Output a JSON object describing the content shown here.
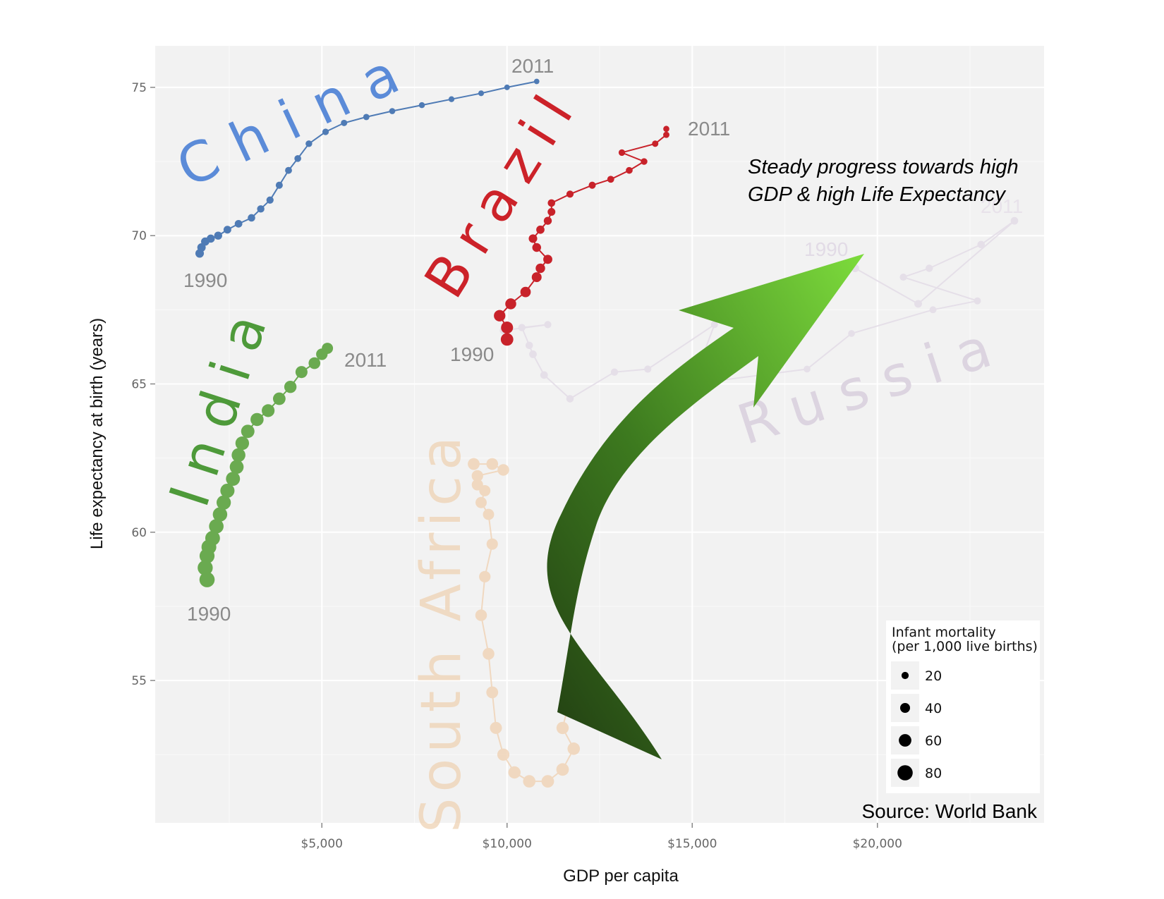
{
  "chart_data": {
    "type": "scatter",
    "xlabel": "GDP per capita",
    "ylabel": "Life expectancy at birth (years)",
    "xlim": [
      500,
      24500
    ],
    "ylim": [
      50.2,
      76.4
    ],
    "x_ticks": [
      5000,
      10000,
      15000,
      20000
    ],
    "x_tick_labels": [
      "$5,000",
      "$10,000",
      "$15,000",
      "$20,000"
    ],
    "y_ticks": [
      55,
      60,
      65,
      70,
      75
    ],
    "y_tick_labels": [
      "55",
      "60",
      "65",
      "70",
      "75"
    ],
    "grid": true,
    "size_legend": {
      "title_line1": "Infant mortality",
      "title_line2": "(per 1,000 live births)",
      "values": [
        20,
        40,
        60,
        80
      ],
      "labels": [
        "20",
        "40",
        "60",
        "80"
      ]
    },
    "annotation_line1": "Steady progress towards high",
    "annotation_line2": "GDP & high Life Expectancy",
    "source": "Source: World Bank",
    "series": [
      {
        "name": "China",
        "color": "#4f7bb5",
        "label_color": "#5b8bd8",
        "opacity": 1,
        "start_label": "1990",
        "end_label": "2011",
        "points": [
          [
            1700,
            69.4,
            30
          ],
          [
            1750,
            69.6,
            29
          ],
          [
            1850,
            69.8,
            28
          ],
          [
            2000,
            69.9,
            27
          ],
          [
            2200,
            70.0,
            26
          ],
          [
            2450,
            70.2,
            24
          ],
          [
            2750,
            70.4,
            23
          ],
          [
            3100,
            70.6,
            22
          ],
          [
            3350,
            70.9,
            21
          ],
          [
            3600,
            71.2,
            20
          ],
          [
            3850,
            71.7,
            19
          ],
          [
            4100,
            72.2,
            18
          ],
          [
            4350,
            72.6,
            17
          ],
          [
            4650,
            73.1,
            16
          ],
          [
            5100,
            73.5,
            15
          ],
          [
            5600,
            73.8,
            14
          ],
          [
            6200,
            74.0,
            13
          ],
          [
            6900,
            74.2,
            12
          ],
          [
            7700,
            74.4,
            11
          ],
          [
            8500,
            74.6,
            10
          ],
          [
            9300,
            74.8,
            9
          ],
          [
            10000,
            75.0,
            8
          ],
          [
            10800,
            75.2,
            7
          ]
        ]
      },
      {
        "name": "Brazil",
        "color": "#c8222a",
        "label_color": "#cc2229",
        "opacity": 1,
        "start_label": "1990",
        "end_label": "2011",
        "points": [
          [
            10000,
            66.5,
            60
          ],
          [
            10000,
            66.9,
            56
          ],
          [
            9800,
            67.3,
            52
          ],
          [
            10100,
            67.7,
            48
          ],
          [
            10500,
            68.1,
            44
          ],
          [
            10800,
            68.6,
            40
          ],
          [
            10900,
            68.9,
            37
          ],
          [
            11100,
            69.2,
            34
          ],
          [
            10800,
            69.6,
            32
          ],
          [
            10700,
            69.9,
            30
          ],
          [
            10900,
            70.2,
            28
          ],
          [
            11100,
            70.5,
            26
          ],
          [
            11200,
            70.8,
            24
          ],
          [
            11200,
            71.1,
            22
          ],
          [
            11700,
            71.4,
            20
          ],
          [
            12300,
            71.7,
            19
          ],
          [
            12800,
            71.9,
            18
          ],
          [
            13300,
            72.2,
            17
          ],
          [
            13700,
            72.5,
            16
          ],
          [
            13100,
            72.8,
            15
          ],
          [
            14000,
            73.1,
            14
          ],
          [
            14300,
            73.4,
            13
          ],
          [
            14300,
            73.6,
            12
          ]
        ]
      },
      {
        "name": "India",
        "color": "#6aaa50",
        "label_color": "#4e9a3a",
        "opacity": 1,
        "start_label": "1990",
        "end_label": "2011",
        "points": [
          [
            1900,
            58.4,
            80
          ],
          [
            1850,
            58.8,
            79
          ],
          [
            1900,
            59.2,
            78
          ],
          [
            1950,
            59.5,
            77
          ],
          [
            2050,
            59.8,
            76
          ],
          [
            2150,
            60.2,
            75
          ],
          [
            2250,
            60.6,
            74
          ],
          [
            2350,
            61.0,
            73
          ],
          [
            2450,
            61.4,
            72
          ],
          [
            2600,
            61.8,
            71
          ],
          [
            2700,
            62.2,
            70
          ],
          [
            2750,
            62.6,
            69
          ],
          [
            2850,
            63.0,
            68
          ],
          [
            3000,
            63.4,
            66
          ],
          [
            3250,
            63.8,
            64
          ],
          [
            3550,
            64.1,
            62
          ],
          [
            3850,
            64.5,
            60
          ],
          [
            4150,
            64.9,
            58
          ],
          [
            4450,
            65.4,
            56
          ],
          [
            4800,
            65.7,
            54
          ],
          [
            5000,
            66.0,
            52
          ],
          [
            5150,
            66.2,
            50
          ]
        ]
      },
      {
        "name": "South Africa",
        "color": "#f0d2b4",
        "label_color": "#efd5b8",
        "opacity": 0.8,
        "start_label": "",
        "end_label": "",
        "points": [
          [
            9100,
            62.3,
            55
          ],
          [
            9600,
            62.3,
            54
          ],
          [
            9900,
            62.1,
            53
          ],
          [
            9200,
            61.9,
            52
          ],
          [
            9200,
            61.6,
            51
          ],
          [
            9400,
            61.4,
            50
          ],
          [
            9300,
            61.0,
            50
          ],
          [
            9500,
            60.6,
            50
          ],
          [
            9600,
            59.6,
            51
          ],
          [
            9400,
            58.5,
            52
          ],
          [
            9300,
            57.2,
            53
          ],
          [
            9500,
            55.9,
            54
          ],
          [
            9600,
            54.6,
            55
          ],
          [
            9700,
            53.4,
            56
          ],
          [
            9900,
            52.5,
            57
          ],
          [
            10200,
            51.9,
            58
          ],
          [
            10600,
            51.6,
            59
          ],
          [
            11100,
            51.6,
            60
          ],
          [
            11500,
            52.0,
            60
          ],
          [
            11800,
            52.7,
            59
          ],
          [
            11500,
            53.4,
            58
          ],
          [
            11700,
            54.4,
            57
          ],
          [
            11900,
            55.3,
            56
          ]
        ]
      },
      {
        "name": "Russia",
        "color": "#e4dde8",
        "label_color": "#dcd4e0",
        "opacity": 0.9,
        "start_label": "1990",
        "end_label": "2011",
        "points": [
          [
            19400,
            68.9,
            25
          ],
          [
            21100,
            67.7,
            24
          ],
          [
            23700,
            70.5,
            23
          ],
          [
            22800,
            69.7,
            22
          ],
          [
            21400,
            68.9,
            21
          ],
          [
            20700,
            68.6,
            20
          ],
          [
            22700,
            67.8,
            19
          ],
          [
            21500,
            67.5,
            18
          ],
          [
            19300,
            66.7,
            17
          ],
          [
            18100,
            65.5,
            17
          ],
          [
            15000,
            65.0,
            18
          ],
          [
            15600,
            67.0,
            19
          ],
          [
            13800,
            65.5,
            20
          ],
          [
            12900,
            65.4,
            21
          ],
          [
            11700,
            64.5,
            22
          ],
          [
            11000,
            65.3,
            23
          ],
          [
            10700,
            66.0,
            23
          ],
          [
            10600,
            66.3,
            22
          ],
          [
            10400,
            66.9,
            21
          ],
          [
            11100,
            67.0,
            20
          ],
          [
            9900,
            66.8,
            21
          ]
        ]
      }
    ]
  }
}
